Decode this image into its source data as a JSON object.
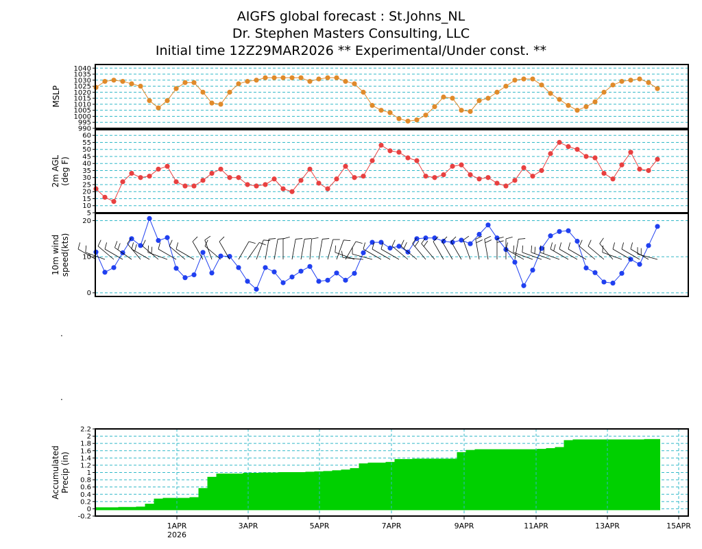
{
  "titles": {
    "line1": "AIGFS global forecast : St.Johns_NL",
    "line2": "Dr. Stephen Masters Consulting, LLC",
    "line3": "Initial time 12Z29MAR2026  ** Experimental/Under const. **"
  },
  "colors": {
    "mslp": "#e08a2a",
    "temp": "#e84040",
    "wind": "#2040f0",
    "precip": "#00d000",
    "grid": "#30b8c8",
    "barb": "#000000"
  },
  "chart_data": [
    {
      "type": "line",
      "id": "mslp",
      "ylabel": "MSLP",
      "ylim": [
        990,
        1043
      ],
      "yticks": [
        990,
        995,
        1000,
        1005,
        1010,
        1015,
        1020,
        1025,
        1030,
        1035,
        1040
      ],
      "values": [
        1024,
        1029,
        1030,
        1029,
        1027,
        1025,
        1013,
        1007,
        1013,
        1023,
        1028,
        1028,
        1020,
        1011,
        1010,
        1020,
        1027,
        1029,
        1030,
        1032,
        1032,
        1032,
        1032,
        1032,
        1029,
        1031,
        1032,
        1032,
        1029,
        1027,
        1020,
        1009,
        1005,
        1003,
        998,
        996,
        997,
        1001,
        1008,
        1016,
        1015,
        1005,
        1004,
        1013,
        1015,
        1020,
        1025,
        1030,
        1031,
        1031,
        1026,
        1019,
        1014,
        1009,
        1005,
        1008,
        1012,
        1020,
        1026,
        1029,
        1030,
        1031,
        1028,
        1023
      ]
    },
    {
      "type": "line",
      "id": "temp",
      "ylabel": "2m AGL (deg F)",
      "ylim": [
        5,
        64
      ],
      "yticks": [
        5,
        10,
        15,
        20,
        25,
        30,
        35,
        40,
        45,
        50,
        55,
        60
      ],
      "values": [
        22,
        16,
        13,
        27,
        33,
        30,
        31,
        36,
        38,
        27,
        24,
        24,
        28,
        33,
        36,
        30,
        30,
        25,
        24,
        25,
        29,
        22,
        20,
        28,
        36,
        26,
        22,
        29,
        38,
        30,
        31,
        42,
        53,
        49,
        48,
        44,
        42,
        31,
        30,
        32,
        38,
        39,
        32,
        29,
        30,
        26,
        24,
        28,
        37,
        31,
        35,
        47,
        55,
        52,
        50,
        45,
        44,
        33,
        29,
        39,
        48,
        36,
        35,
        43
      ]
    },
    {
      "type": "line",
      "id": "wind",
      "ylabel": "10m wind speed(kts)",
      "ylim": [
        -1,
        22
      ],
      "yticks": [
        0,
        10,
        20
      ],
      "values": [
        11.3,
        5.7,
        7.0,
        11.1,
        15.0,
        13.1,
        20.6,
        14.5,
        15.3,
        6.8,
        4.2,
        5.0,
        11.2,
        5.5,
        10.2,
        10.1,
        7.0,
        3.2,
        1.0,
        7.0,
        5.8,
        2.8,
        4.4,
        6.0,
        7.3,
        3.2,
        3.5,
        5.5,
        3.5,
        5.4,
        11.1,
        14.0,
        14.0,
        12.4,
        12.9,
        11.3,
        15.0,
        15.2,
        15.2,
        14.3,
        14.0,
        14.6,
        13.6,
        16.2,
        18.8,
        15.2,
        12.0,
        8.5,
        2.0,
        6.3,
        12.3,
        15.8,
        17.0,
        17.2,
        14.3,
        6.9,
        5.6,
        3.0,
        2.7,
        5.4,
        9.3,
        7.9,
        13.1,
        18.4
      ]
    },
    {
      "type": "area",
      "id": "precip",
      "ylabel": "Accumulated Precip (in)",
      "ylim": [
        -0.2,
        2.2
      ],
      "yticks": [
        -0.2,
        0,
        0.2,
        0.4,
        0.6,
        0.8,
        1,
        1.2,
        1.4,
        1.6,
        1.8,
        2,
        2.2
      ],
      "values": [
        0.04,
        0.04,
        0.04,
        0.05,
        0.05,
        0.06,
        0.14,
        0.28,
        0.3,
        0.3,
        0.3,
        0.32,
        0.57,
        0.88,
        0.97,
        0.97,
        0.97,
        0.99,
        0.99,
        1.0,
        1.0,
        1.01,
        1.01,
        1.01,
        1.02,
        1.03,
        1.04,
        1.06,
        1.08,
        1.12,
        1.25,
        1.27,
        1.27,
        1.29,
        1.37,
        1.37,
        1.38,
        1.38,
        1.38,
        1.38,
        1.38,
        1.56,
        1.62,
        1.64,
        1.64,
        1.64,
        1.64,
        1.64,
        1.64,
        1.64,
        1.65,
        1.67,
        1.7,
        1.89,
        1.91,
        1.91,
        1.91,
        1.91,
        1.91,
        1.91,
        1.91,
        1.91,
        1.92,
        1.92
      ],
      "xticks": [
        "1APR",
        "3APR",
        "5APR",
        "7APR",
        "9APR",
        "11APR",
        "13APR",
        "15APR"
      ],
      "xyear": "2026"
    }
  ]
}
